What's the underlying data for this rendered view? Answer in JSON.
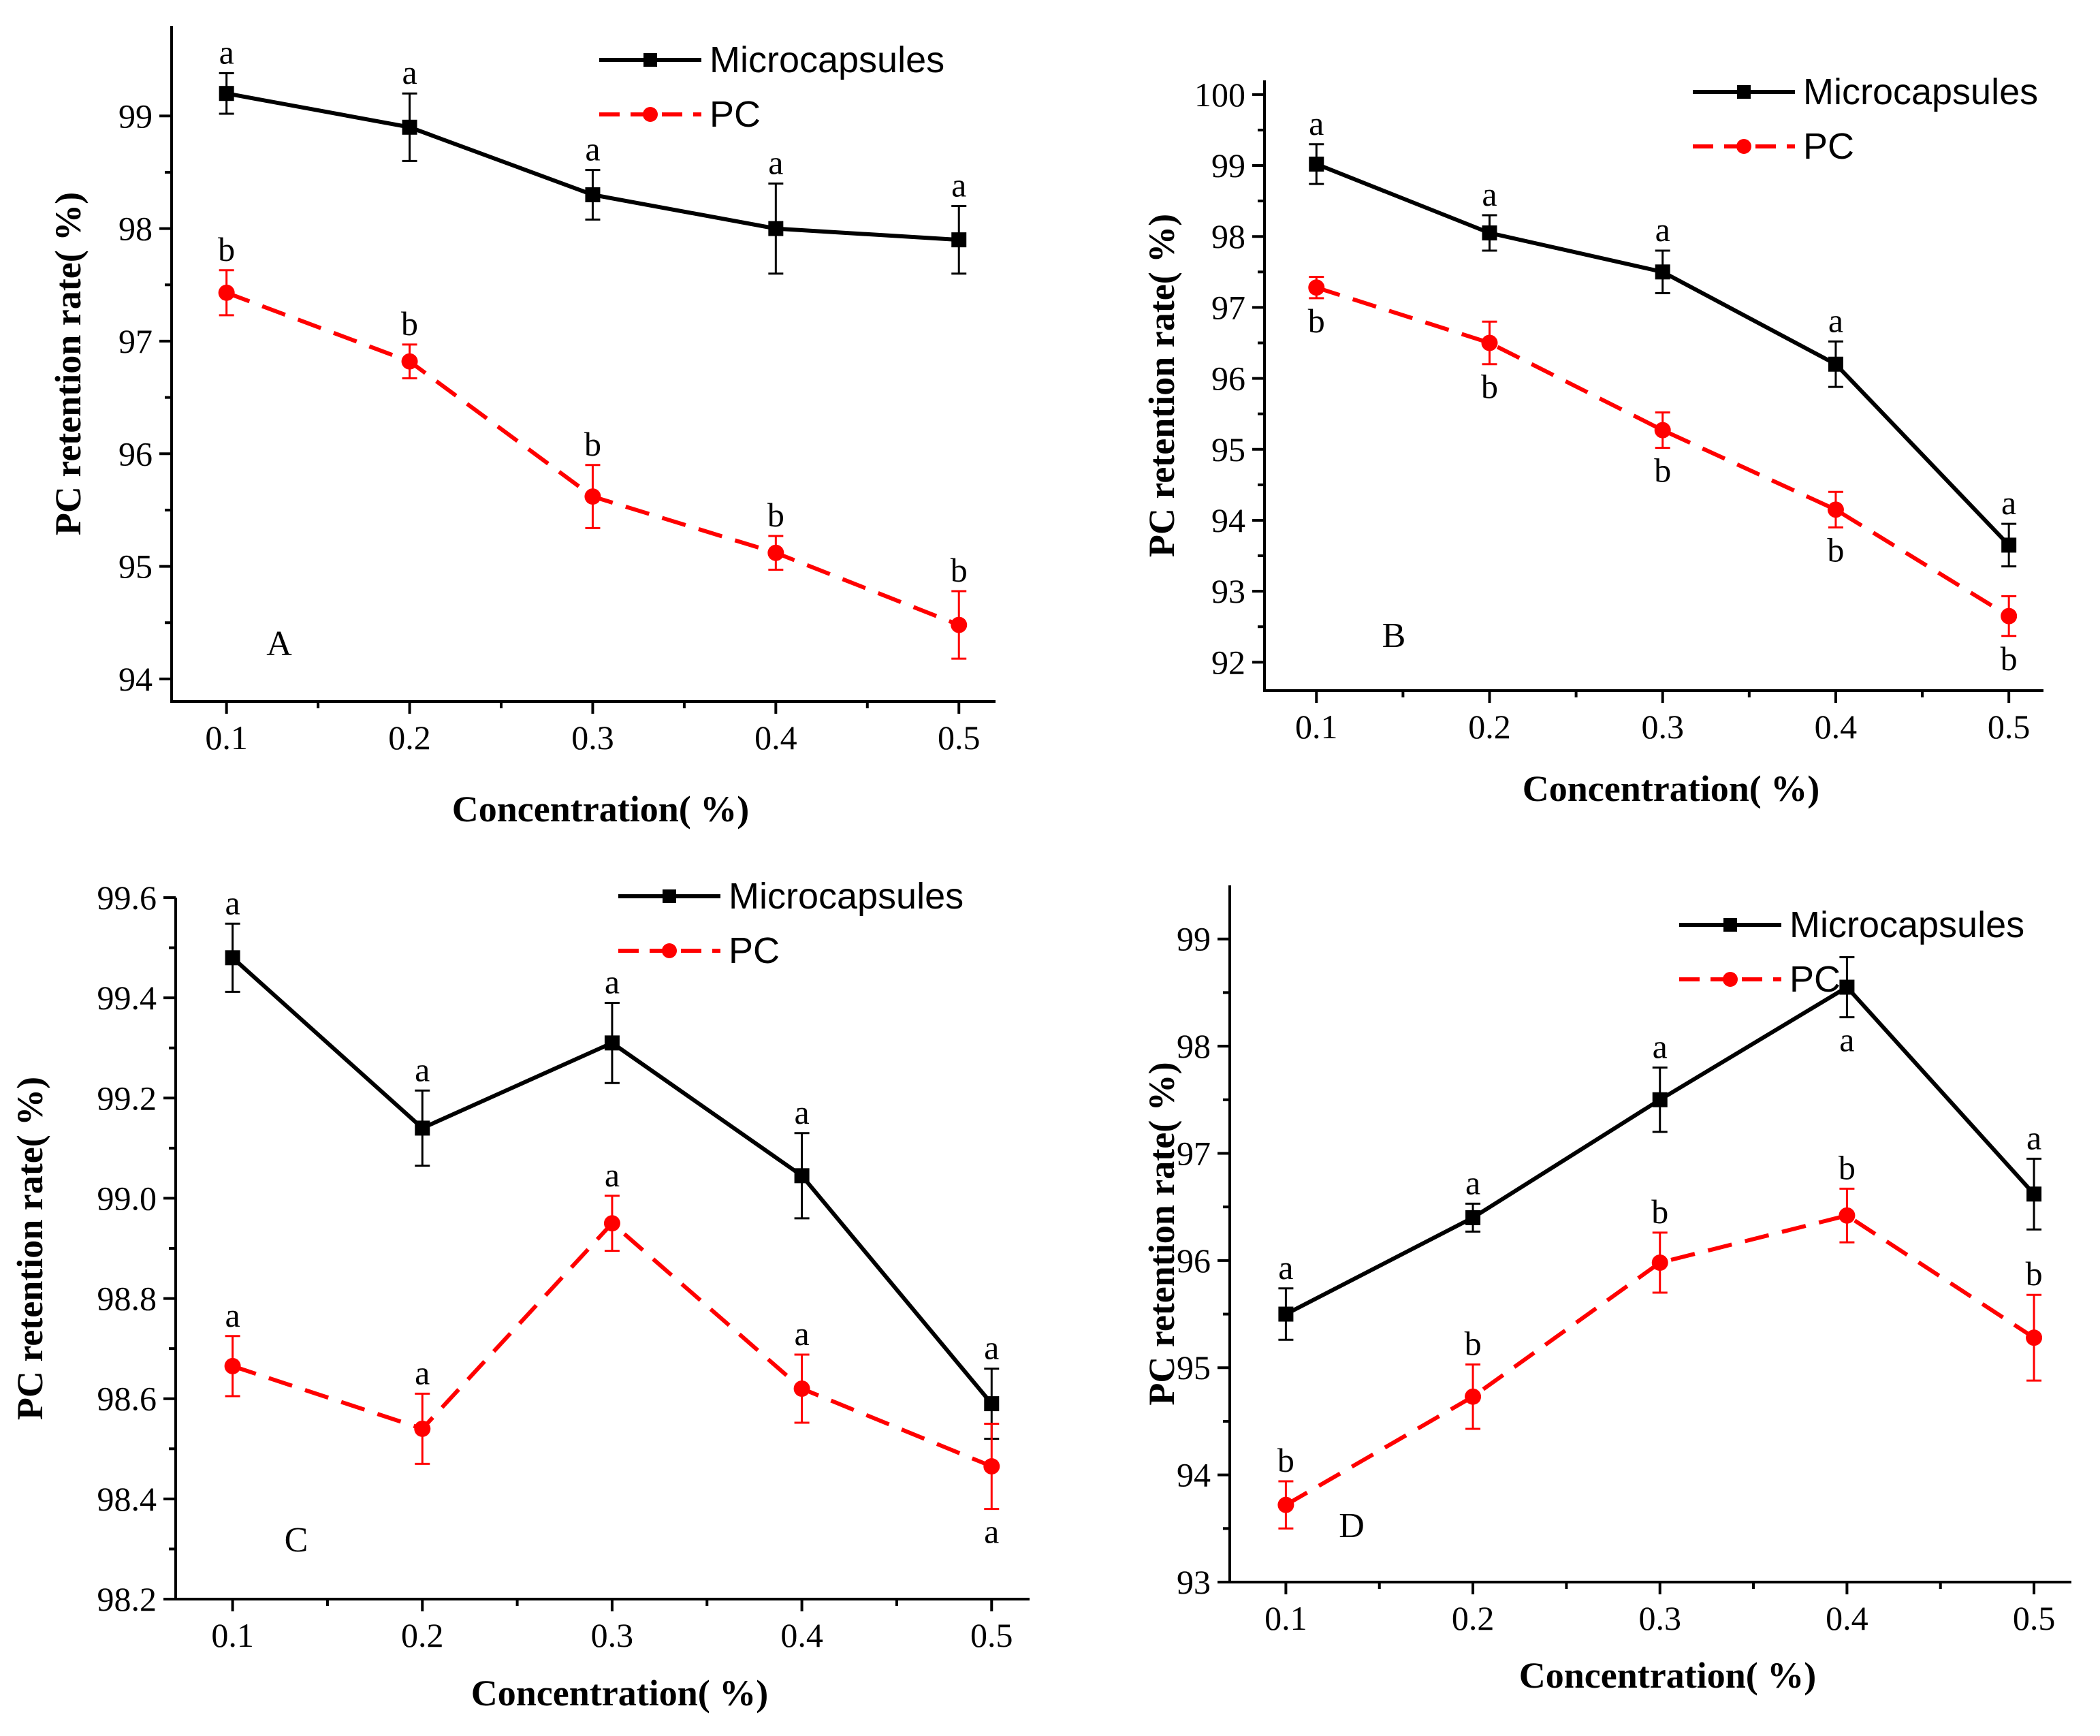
{
  "chart_data": [
    {
      "type": "line",
      "panel_label": "A",
      "xlabel": "Concentration( %)",
      "ylabel": "PC retention rate( %)",
      "x": [
        0.1,
        0.2,
        0.3,
        0.4,
        0.5
      ],
      "xticks": [
        "0.1",
        "0.2",
        "0.3",
        "0.4",
        "0.5"
      ],
      "xlim": [
        0.07,
        0.52
      ],
      "ylim": [
        93.8,
        99.8
      ],
      "yticks": [
        "94",
        "95",
        "96",
        "97",
        "98",
        "99"
      ],
      "legend_position": "top-right",
      "series": [
        {
          "name": "Microcapsules",
          "color": "#000000",
          "marker": "square",
          "dash": false,
          "values": [
            99.2,
            98.9,
            98.3,
            98.0,
            97.9
          ],
          "errors": [
            0.18,
            0.3,
            0.22,
            0.4,
            0.3
          ],
          "letters": [
            "a",
            "a",
            "a",
            "a",
            "a"
          ],
          "letter_pos": [
            "above",
            "above",
            "above",
            "above",
            "above"
          ]
        },
        {
          "name": "PC",
          "color": "#ff0000",
          "marker": "circle",
          "dash": true,
          "values": [
            97.43,
            96.82,
            95.62,
            95.12,
            94.48
          ],
          "errors": [
            0.2,
            0.15,
            0.28,
            0.15,
            0.3
          ],
          "letters": [
            "b",
            "b",
            "b",
            "b",
            "b"
          ],
          "letter_pos": [
            "above",
            "above",
            "above",
            "above",
            "above"
          ]
        }
      ]
    },
    {
      "type": "line",
      "panel_label": "B",
      "xlabel": "Concentration( %)",
      "ylabel": "PC retention rate( %)",
      "x": [
        0.1,
        0.2,
        0.3,
        0.4,
        0.5
      ],
      "xticks": [
        "0.1",
        "0.2",
        "0.3",
        "0.4",
        "0.5"
      ],
      "xlim": [
        0.07,
        0.52
      ],
      "ylim": [
        91.6,
        100.2
      ],
      "yticks": [
        "92",
        "93",
        "94",
        "95",
        "96",
        "97",
        "98",
        "99",
        "100"
      ],
      "legend_position": "top-right",
      "series": [
        {
          "name": "Microcapsules",
          "color": "#000000",
          "marker": "square",
          "dash": false,
          "values": [
            99.02,
            98.05,
            97.5,
            96.2,
            93.65
          ],
          "errors": [
            0.28,
            0.25,
            0.3,
            0.32,
            0.3
          ],
          "letters": [
            "a",
            "a",
            "a",
            "a",
            "a"
          ],
          "letter_pos": [
            "above",
            "above",
            "above",
            "above",
            "above"
          ]
        },
        {
          "name": "PC",
          "color": "#ff0000",
          "marker": "circle",
          "dash": true,
          "values": [
            97.28,
            96.5,
            95.27,
            94.15,
            92.65
          ],
          "errors": [
            0.15,
            0.3,
            0.25,
            0.25,
            0.28
          ],
          "letters": [
            "b",
            "b",
            "b",
            "b",
            "b"
          ],
          "letter_pos": [
            "below",
            "below",
            "below",
            "below",
            "below"
          ]
        }
      ]
    },
    {
      "type": "line",
      "panel_label": "C",
      "xlabel": "Concentration( %)",
      "ylabel": "PC retention rate( %)",
      "x": [
        0.1,
        0.2,
        0.3,
        0.4,
        0.5
      ],
      "xticks": [
        "0.1",
        "0.2",
        "0.3",
        "0.4",
        "0.5"
      ],
      "xlim": [
        0.07,
        0.52
      ],
      "ylim": [
        98.2,
        99.6
      ],
      "yticks": [
        "98.2",
        "98.4",
        "98.6",
        "98.8",
        "99.0",
        "99.2",
        "99.4",
        "99.6"
      ],
      "legend_position": "top-right",
      "series": [
        {
          "name": "Microcapsules",
          "color": "#000000",
          "marker": "square",
          "dash": false,
          "values": [
            99.48,
            99.14,
            99.31,
            99.045,
            98.59
          ],
          "errors": [
            0.068,
            0.075,
            0.08,
            0.085,
            0.07
          ],
          "letters": [
            "a",
            "a",
            "a",
            "a",
            "a"
          ],
          "letter_pos": [
            "above",
            "above",
            "above",
            "above",
            "above"
          ]
        },
        {
          "name": "PC",
          "color": "#ff0000",
          "marker": "circle",
          "dash": true,
          "values": [
            98.665,
            98.54,
            98.95,
            98.62,
            98.465
          ],
          "errors": [
            0.06,
            0.07,
            0.055,
            0.068,
            0.085
          ],
          "letters": [
            "a",
            "a",
            "a",
            "a",
            "a"
          ],
          "letter_pos": [
            "above",
            "above",
            "above",
            "above",
            "below"
          ]
        }
      ]
    },
    {
      "type": "line",
      "panel_label": "D",
      "xlabel": "Concentration( %)",
      "ylabel": "PC retention rate( %)",
      "x": [
        0.1,
        0.2,
        0.3,
        0.4,
        0.5
      ],
      "xticks": [
        "0.1",
        "0.2",
        "0.3",
        "0.4",
        "0.5"
      ],
      "xlim": [
        0.07,
        0.52
      ],
      "ylim": [
        93.0,
        99.5
      ],
      "yticks": [
        "93",
        "94",
        "95",
        "96",
        "97",
        "98",
        "99"
      ],
      "legend_position": "top-right",
      "series": [
        {
          "name": "Microcapsules",
          "color": "#000000",
          "marker": "square",
          "dash": false,
          "values": [
            95.5,
            96.4,
            97.5,
            98.55,
            96.62
          ],
          "errors": [
            0.24,
            0.13,
            0.3,
            0.28,
            0.33
          ],
          "letters": [
            "a",
            "a",
            "a",
            "a",
            "a"
          ],
          "letter_pos": [
            "above",
            "above",
            "above",
            "below",
            "above"
          ]
        },
        {
          "name": "PC",
          "color": "#ff0000",
          "marker": "circle",
          "dash": true,
          "values": [
            93.72,
            94.73,
            95.98,
            96.42,
            95.28
          ],
          "errors": [
            0.22,
            0.3,
            0.28,
            0.25,
            0.4
          ],
          "letters": [
            "b",
            "b",
            "b",
            "b",
            "b"
          ],
          "letter_pos": [
            "above",
            "above",
            "above",
            "above",
            "above"
          ]
        }
      ]
    }
  ]
}
